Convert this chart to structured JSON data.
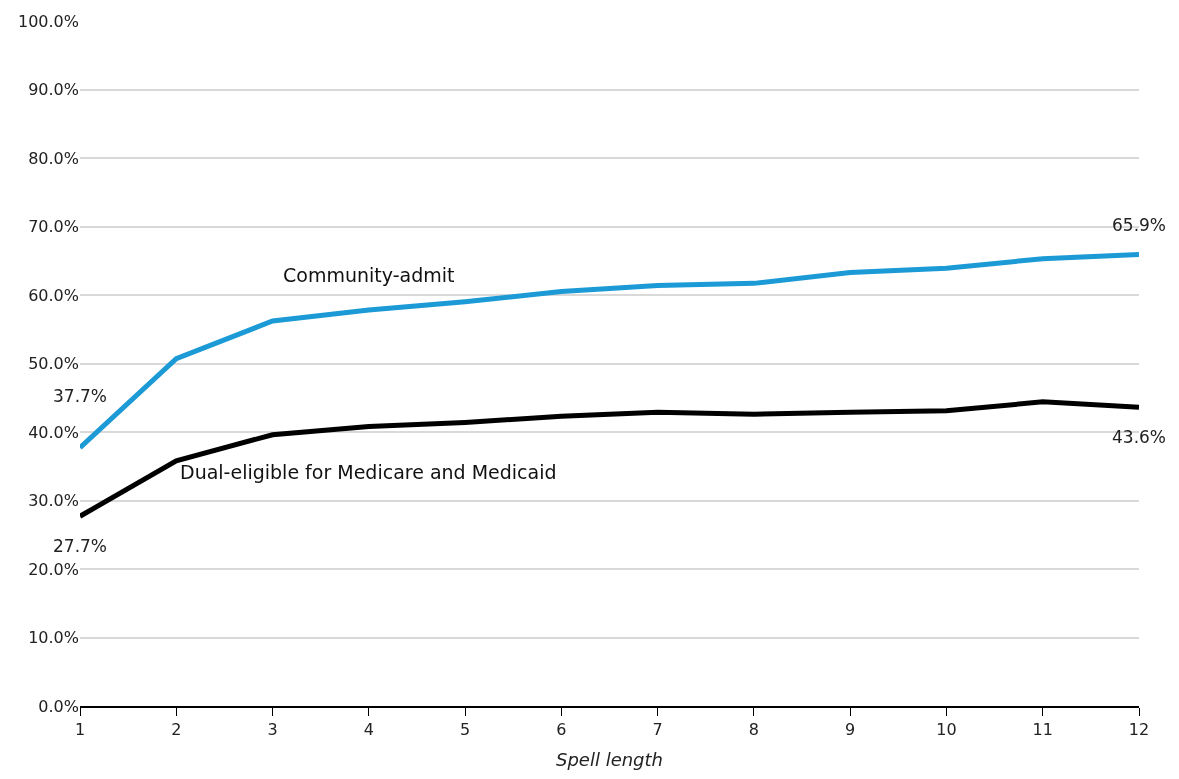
{
  "chart_data": {
    "type": "line",
    "xlabel": "Spell length",
    "x": [
      1,
      2,
      3,
      4,
      5,
      6,
      7,
      8,
      9,
      10,
      11,
      12
    ],
    "series": [
      {
        "name": "Community-admit",
        "color": "#1b9ad6",
        "values": [
          37.7,
          50.7,
          56.2,
          57.8,
          59.0,
          60.5,
          61.4,
          61.7,
          63.3,
          63.9,
          65.3,
          65.9
        ],
        "value_labels": [
          "37.7%",
          null,
          null,
          null,
          null,
          null,
          null,
          null,
          null,
          null,
          null,
          "65.9%"
        ]
      },
      {
        "name": "Dual-eligible for Medicare and Medicaid",
        "color": "#000000",
        "values": [
          27.7,
          35.8,
          39.6,
          40.8,
          41.4,
          42.3,
          42.9,
          42.6,
          42.9,
          43.1,
          44.4,
          43.6
        ],
        "value_labels": [
          "27.7%",
          null,
          null,
          null,
          null,
          null,
          null,
          null,
          null,
          null,
          null,
          "43.6%"
        ]
      }
    ],
    "xlim": [
      1,
      12
    ],
    "xticks": [
      1,
      2,
      3,
      4,
      5,
      6,
      7,
      8,
      9,
      10,
      11,
      12
    ],
    "ylim": [
      0,
      100
    ],
    "yticks": [
      {
        "value": 0,
        "label": "0.0%"
      },
      {
        "value": 10,
        "label": "10.0%"
      },
      {
        "value": 20,
        "label": "20.0%"
      },
      {
        "value": 30,
        "label": "30.0%"
      },
      {
        "value": 40,
        "label": "40.0%"
      },
      {
        "value": 50,
        "label": "50.0%"
      },
      {
        "value": 60,
        "label": "60.0%"
      },
      {
        "value": 70,
        "label": "70.0%"
      },
      {
        "value": 80,
        "label": "80.0%"
      },
      {
        "value": 90,
        "label": "90.0%"
      },
      {
        "value": 100,
        "label": "100.0%"
      }
    ],
    "grid": "y",
    "legend": false,
    "marker": "none",
    "line_style": "solid"
  }
}
